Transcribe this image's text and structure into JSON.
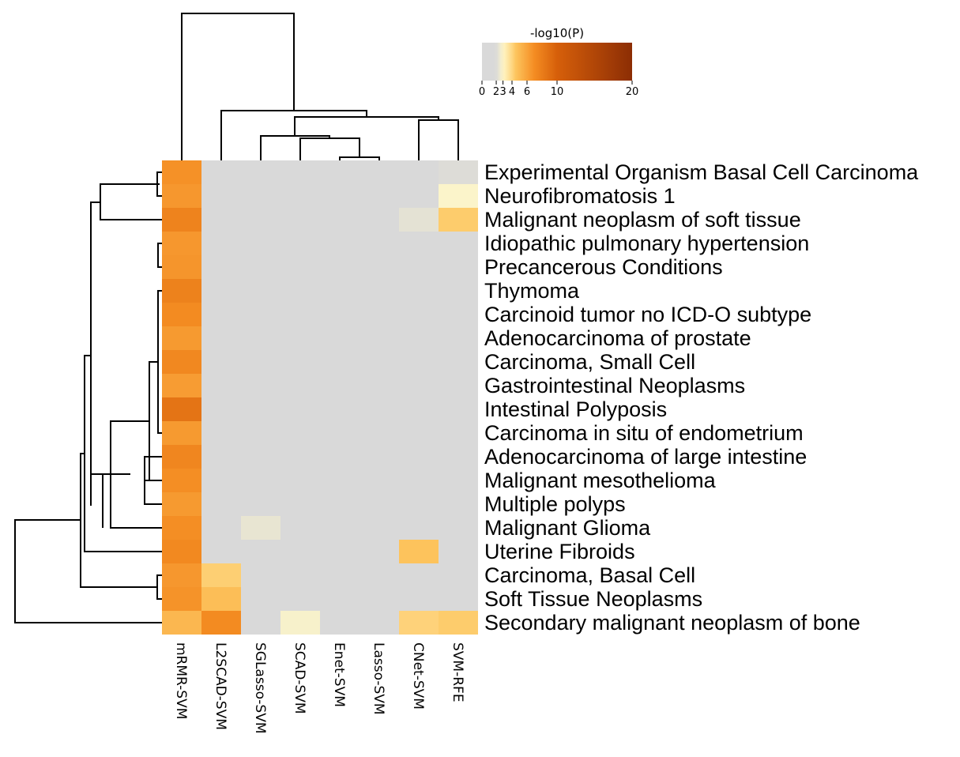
{
  "chart_data": {
    "type": "heatmap",
    "colorbar": {
      "title": "-log10(P)",
      "ticks": [
        "0",
        "2",
        "3",
        "4",
        "6",
        "10",
        "20"
      ],
      "tick_values": [
        0,
        2,
        3,
        4,
        6,
        10,
        20
      ],
      "range": [
        0,
        20
      ],
      "colors": {
        "gray": "#d9d9d9",
        "pale_yellow": "#fff7c8",
        "light_orange": "#fdc55e",
        "orange": "#f48c22",
        "dark_orange": "#d65f0a",
        "brown": "#8c2d04"
      }
    },
    "columns": [
      "mRMR-SVM",
      "L2SCAD-SVM",
      "SGLasso-SVM",
      "SCAD-SVM",
      "Enet-SVM",
      "Lasso-SVM",
      "CNet-SVM",
      "SVM-RFE"
    ],
    "rows": [
      "Experimental Organism Basal Cell Carcinoma",
      "Neurofibromatosis 1",
      "Malignant neoplasm of soft tissue",
      "Idiopathic pulmonary hypertension",
      "Precancerous Conditions",
      "Thymoma",
      "Carcinoid tumor no ICD-O subtype",
      "Adenocarcinoma of prostate",
      "Carcinoma, Small Cell",
      "Gastrointestinal Neoplasms",
      "Intestinal Polyposis",
      "Carcinoma in situ of endometrium",
      "Adenocarcinoma of large intestine",
      "Malignant mesothelioma",
      "Multiple polyps",
      "Malignant Glioma",
      "Uterine Fibroids",
      "Carcinoma, Basal Cell",
      "Soft Tissue Neoplasms",
      "Secondary malignant neoplasm of bone"
    ],
    "values": [
      [
        6.8,
        0,
        0,
        0,
        0,
        0,
        0,
        2.1
      ],
      [
        6.5,
        0,
        0,
        0,
        0,
        0,
        0,
        2.9
      ],
      [
        7.6,
        0,
        0,
        0,
        0,
        0,
        2.3,
        4.3
      ],
      [
        6.5,
        0,
        0,
        0,
        0,
        0,
        0,
        0
      ],
      [
        6.6,
        0,
        0,
        0,
        0,
        0,
        0,
        0
      ],
      [
        7.7,
        0,
        0,
        0,
        0,
        0,
        0,
        0
      ],
      [
        7.1,
        0,
        0,
        0,
        0,
        0,
        0,
        0
      ],
      [
        6.4,
        0,
        0,
        0,
        0,
        0,
        0,
        0
      ],
      [
        7.3,
        0,
        0,
        0,
        0,
        0,
        0,
        0
      ],
      [
        6.3,
        0,
        0,
        0,
        0,
        0,
        0,
        0
      ],
      [
        8.6,
        0,
        0,
        0,
        0,
        0,
        0,
        0
      ],
      [
        6.4,
        0,
        0,
        0,
        0,
        0,
        0,
        0
      ],
      [
        7.4,
        0,
        0,
        0,
        0,
        0,
        0,
        0
      ],
      [
        6.9,
        0,
        0,
        0,
        0,
        0,
        0,
        0
      ],
      [
        6.4,
        0,
        0,
        0,
        0,
        0,
        0,
        0
      ],
      [
        6.9,
        0,
        2.4,
        0,
        0,
        0,
        0,
        0
      ],
      [
        7.2,
        0,
        0,
        0,
        0,
        0,
        4.6,
        0
      ],
      [
        6.5,
        4.2,
        0,
        0,
        0,
        0,
        0,
        0
      ],
      [
        6.7,
        4.8,
        0,
        0,
        0,
        0,
        0,
        0
      ],
      [
        5.1,
        7.1,
        0,
        2.8,
        0,
        0,
        4.1,
        4.3
      ]
    ]
  }
}
